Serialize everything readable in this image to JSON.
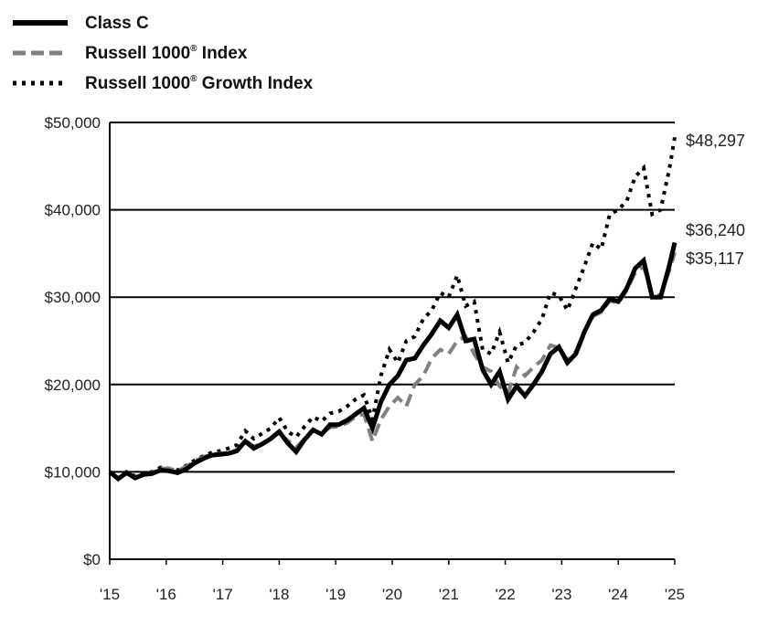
{
  "chart_data": {
    "type": "line",
    "title": "",
    "xlabel": "",
    "ylabel": "",
    "ylim": [
      0,
      50000
    ],
    "xlim": [
      2015,
      2025
    ],
    "grid": true,
    "legend_position": "top-left",
    "y_ticks": [
      "$0",
      "$10,000",
      "$20,000",
      "$30,000",
      "$40,000",
      "$50,000"
    ],
    "y_tick_values": [
      0,
      10000,
      20000,
      30000,
      40000,
      50000
    ],
    "x_ticks": [
      "'15",
      "'16",
      "'17",
      "'18",
      "'19",
      "'20",
      "'21",
      "'22",
      "'23",
      "'24",
      "'25"
    ],
    "x_tick_values": [
      2015,
      2016,
      2017,
      2018,
      2019,
      2020,
      2021,
      2022,
      2023,
      2024,
      2025
    ],
    "x": [
      2015,
      2015.15,
      2015.3,
      2015.45,
      2015.6,
      2015.75,
      2015.9,
      2016.05,
      2016.2,
      2016.35,
      2016.5,
      2016.65,
      2016.8,
      2016.95,
      2017.1,
      2017.25,
      2017.4,
      2017.55,
      2017.7,
      2017.85,
      2018,
      2018.15,
      2018.3,
      2018.45,
      2018.6,
      2018.75,
      2018.9,
      2019.05,
      2019.2,
      2019.35,
      2019.5,
      2019.65,
      2019.8,
      2019.95,
      2020.1,
      2020.25,
      2020.4,
      2020.55,
      2020.7,
      2020.85,
      2021,
      2021.15,
      2021.3,
      2021.45,
      2021.6,
      2021.75,
      2021.9,
      2022.05,
      2022.2,
      2022.35,
      2022.5,
      2022.65,
      2022.8,
      2022.95,
      2023.1,
      2023.25,
      2023.4,
      2023.55,
      2023.7,
      2023.85,
      2024,
      2024.15,
      2024.3,
      2024.45,
      2024.6,
      2024.75,
      2024.9,
      2025
    ],
    "series": [
      {
        "name": "Class C",
        "superscript": "",
        "suffix": "",
        "color": "#000000",
        "style": "solid",
        "end_label": "$36,240",
        "values": [
          10000,
          9200,
          9900,
          9300,
          9700,
          9800,
          10200,
          10100,
          9900,
          10300,
          11000,
          11500,
          11900,
          12000,
          12100,
          12400,
          13500,
          12700,
          13200,
          13800,
          14600,
          13300,
          12300,
          13700,
          14800,
          14300,
          15400,
          15400,
          15900,
          16600,
          17300,
          15000,
          18000,
          20000,
          21000,
          22800,
          23000,
          24500,
          25800,
          27300,
          26500,
          28000,
          25000,
          25200,
          21700,
          20000,
          21500,
          18300,
          19800,
          18700,
          20000,
          21500,
          23500,
          24300,
          22500,
          23500,
          26000,
          28000,
          28500,
          29800,
          29500,
          31000,
          33300,
          34200,
          30000,
          30000,
          33500,
          36240
        ]
      },
      {
        "name": "Russell 1000",
        "superscript": "®",
        "suffix": " Index",
        "color": "#808080",
        "style": "dashed",
        "end_label": "$35,117",
        "values": [
          10000,
          9300,
          9900,
          9400,
          9700,
          9900,
          10400,
          10400,
          10100,
          10600,
          11200,
          11700,
          12000,
          12100,
          12200,
          12500,
          13600,
          12900,
          13300,
          13800,
          14400,
          13600,
          12800,
          13800,
          14700,
          14400,
          15100,
          15200,
          15600,
          16300,
          16600,
          13500,
          16000,
          17500,
          18500,
          17500,
          20000,
          21000,
          23000,
          24000,
          23500,
          25000,
          25500,
          23500,
          22000,
          21500,
          19800,
          19000,
          22000,
          21000,
          22000,
          22800,
          24500,
          24200,
          22800,
          23800,
          26000,
          27800,
          28300,
          29600,
          29300,
          30800,
          32800,
          33500,
          30300,
          30200,
          33000,
          35117
        ]
      },
      {
        "name": "Russell 1000",
        "superscript": "®",
        "suffix": " Growth Index",
        "color": "#000000",
        "style": "dotted",
        "end_label": "$48,297",
        "values": [
          10000,
          9300,
          10000,
          9500,
          9800,
          10000,
          10500,
          10400,
          10200,
          10700,
          11300,
          11800,
          12200,
          12400,
          12700,
          13100,
          14700,
          13800,
          14400,
          15000,
          16200,
          14600,
          14000,
          15200,
          16300,
          15800,
          16700,
          16900,
          17500,
          18300,
          18800,
          16000,
          21000,
          24000,
          22500,
          25000,
          25500,
          27500,
          28500,
          30500,
          30000,
          32500,
          29000,
          29500,
          24000,
          23500,
          26000,
          22500,
          24500,
          24800,
          26000,
          27500,
          30500,
          30200,
          28500,
          31000,
          33500,
          36200,
          35500,
          39500,
          40000,
          41000,
          43800,
          44800,
          39500,
          40000,
          44500,
          48297
        ]
      }
    ]
  }
}
